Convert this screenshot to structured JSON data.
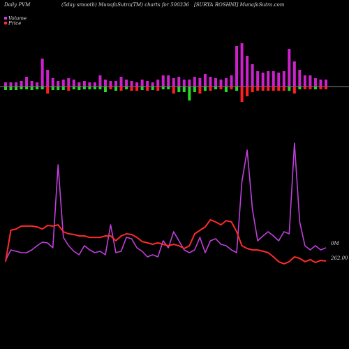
{
  "chart_data": {
    "type": "pvm",
    "title": "Daily PVM",
    "subtitle": "(5day smooth) MunafaSutra(TM) charts for 500336",
    "source": "[SURYA ROSHNI] MunafaSutra.com",
    "ylim": [
      0,
      180
    ],
    "y2lim": [
      260,
      320
    ],
    "series": [
      {
        "name": "Volume",
        "color": "#c040dc",
        "end_label": "0M",
        "values": [
          7,
          22,
          20,
          18,
          18,
          22,
          28,
          33,
          32,
          25,
          144,
          40,
          28,
          20,
          15,
          28,
          22,
          18,
          20,
          15,
          58,
          18,
          20,
          40,
          38,
          25,
          20,
          12,
          15,
          12,
          35,
          25,
          48,
          35,
          22,
          18,
          22,
          40,
          18,
          35,
          38,
          30,
          28,
          22,
          18,
          120,
          165,
          80,
          35,
          42,
          48,
          42,
          35,
          48,
          45,
          175,
          62,
          28,
          22,
          28,
          22,
          25
        ]
      },
      {
        "name": "Price",
        "color": "#ff2a2a",
        "axis": "y2",
        "value_labels": [
          null,
          null,
          null,
          null,
          null,
          null,
          null,
          null,
          null,
          null,
          null,
          null,
          null,
          null,
          null,
          null,
          null,
          null,
          null,
          null,
          null,
          null,
          null,
          null,
          null,
          null,
          null,
          null,
          null,
          null,
          null,
          null,
          null,
          null,
          null,
          null,
          null,
          null,
          null,
          null,
          null,
          null,
          null,
          null,
          null,
          null,
          null,
          null,
          null,
          null,
          null,
          null,
          null,
          null,
          null,
          null,
          null,
          null,
          null,
          null,
          null,
          "262.00"
        ],
        "values": [
          261.7,
          276.7,
          277.3,
          278.7,
          278.7,
          278.7,
          278.3,
          277.3,
          279,
          278.7,
          279.3,
          276,
          275,
          274.7,
          274,
          274,
          273.3,
          273.3,
          273.3,
          274,
          274,
          271.7,
          274,
          275,
          274.7,
          273.3,
          271.3,
          270.7,
          270,
          270.7,
          270,
          269.3,
          270,
          269.3,
          268,
          269.3,
          275,
          276.7,
          278.3,
          281.7,
          280.7,
          279.3,
          281.3,
          280.7,
          276,
          269.3,
          268,
          267.3,
          267.3,
          266.7,
          266,
          264,
          261.7,
          260.7,
          261.7,
          264,
          263.3,
          261.7,
          262.7,
          261.3,
          262.3,
          262
        ]
      }
    ],
    "bars": {
      "ylim": [
        -30,
        70
      ],
      "upper_color": "#cc22cc",
      "upper": [
        6,
        6,
        6,
        8,
        14,
        8,
        6,
        40,
        24,
        12,
        8,
        10,
        12,
        10,
        6,
        8,
        6,
        6,
        16,
        10,
        8,
        8,
        14,
        10,
        8,
        6,
        10,
        8,
        6,
        10,
        16,
        16,
        12,
        14,
        10,
        10,
        14,
        12,
        18,
        14,
        12,
        10,
        12,
        16,
        58,
        62,
        44,
        32,
        22,
        20,
        22,
        22,
        20,
        22,
        54,
        36,
        24,
        16,
        16,
        12,
        10,
        10
      ],
      "lower": [
        -5,
        -5,
        -5,
        -4,
        -4,
        -5,
        -4,
        -4,
        -10,
        -5,
        -5,
        -5,
        -6,
        -4,
        -5,
        -4,
        -4,
        -4,
        -4,
        -8,
        -4,
        -6,
        -6,
        -4,
        -6,
        -6,
        -5,
        -6,
        -5,
        -6,
        -4,
        -4,
        -10,
        -8,
        -8,
        -20,
        -8,
        -10,
        -6,
        -6,
        -4,
        -4,
        -8,
        -4,
        -6,
        -22,
        -14,
        -8,
        -6,
        -6,
        -6,
        -6,
        -6,
        -6,
        -6,
        -10,
        -4,
        -4,
        -4,
        -4,
        -4,
        -4
      ],
      "lower_colors": [
        "#22dd22",
        "#22dd22",
        "#22dd22",
        "#22dd22",
        "#22dd22",
        "#22dd22",
        "#22dd22",
        "#22dd22",
        "#ff2020",
        "#22dd22",
        "#22dd22",
        "#22dd22",
        "#ff2020",
        "#22dd22",
        "#22dd22",
        "#22dd22",
        "#22dd22",
        "#22dd22",
        "#22dd22",
        "#22dd22",
        "#ff2020",
        "#22dd22",
        "#ff2020",
        "#22dd22",
        "#ff2020",
        "#ff2020",
        "#22dd22",
        "#ff2020",
        "#22dd22",
        "#ff2020",
        "#22dd22",
        "#22dd22",
        "#ff2020",
        "#22dd22",
        "#22dd22",
        "#22dd22",
        "#22dd22",
        "#ff2020",
        "#22dd22",
        "#ff2020",
        "#22dd22",
        "#ff2020",
        "#22dd22",
        "#ff2020",
        "#22dd22",
        "#ff2020",
        "#ff2020",
        "#ff2020",
        "#ff2020",
        "#ff2020",
        "#ff2020",
        "#ff2020",
        "#ff2020",
        "#ff2020",
        "#22dd22",
        "#ff2020",
        "#22dd22",
        "#ff2020",
        "#ff2020",
        "#22dd22",
        "#ff2020",
        "#ff2020"
      ]
    }
  }
}
